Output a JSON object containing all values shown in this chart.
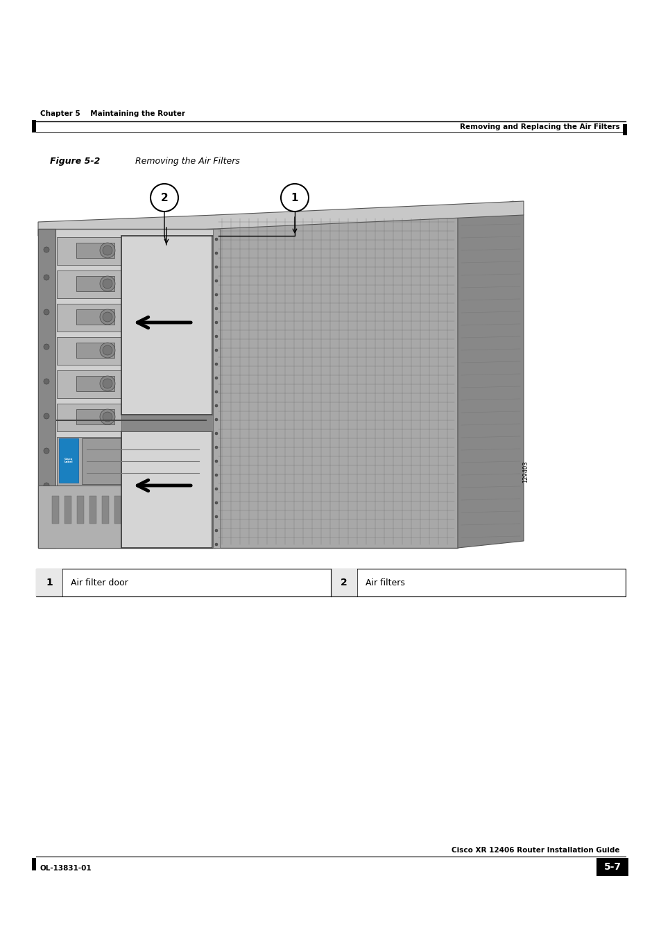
{
  "bg_color": "#ffffff",
  "page_width": 9.54,
  "page_height": 13.51,
  "dpi": 100,
  "header_chapter_text": "Chapter 5    Maintaining the Router",
  "header_right_text": "Removing and Replacing the Air Filters",
  "figure_label": "Figure 5-2",
  "figure_title": "     Removing the Air Filters",
  "item1_num": "1",
  "item1_text": "Air filter door",
  "item2_num": "2",
  "item2_text": "Air filters",
  "footer_left_text": "OL-13831-01",
  "footer_right_text": "Cisco XR 12406 Router Installation Guide",
  "footer_page_num": "5-7",
  "img_num": "129403",
  "text_color": "#000000",
  "line_color": "#000000",
  "bar_color": "#000000"
}
